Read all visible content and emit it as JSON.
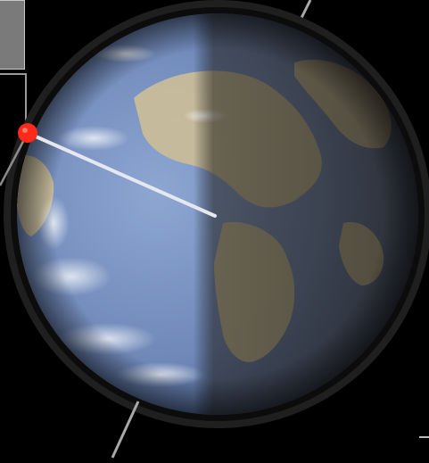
{
  "scene": {
    "subject": "globe",
    "colors": {
      "space": "#000000",
      "ocean": "#6f88b8",
      "land": "#cbbd98",
      "night_side": "#2a2721",
      "rim": "#242424",
      "marker": "#ff2a1a",
      "pointer_line": "#e6e8f0",
      "axis_line": "#a8a8a8",
      "tile": "#7a7a7a"
    },
    "icons": {
      "marker": "location-marker-icon"
    }
  }
}
